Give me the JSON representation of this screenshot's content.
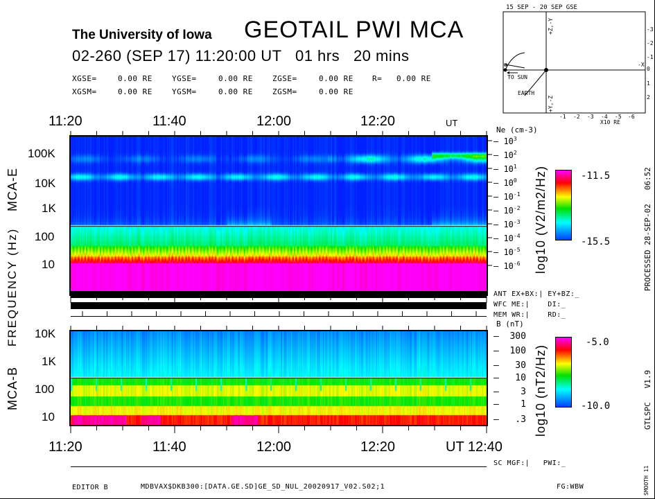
{
  "header": {
    "institution": "The University of Iowa",
    "title": "GEOTAIL PWI MCA",
    "date_line": "02-260 (SEP 17) 11:20:00 UT   01 hrs   20 mins",
    "gse": [
      {
        "label": "XGSE=",
        "value": "0.00 RE"
      },
      {
        "label": "YGSE=",
        "value": "0.00 RE"
      },
      {
        "label": "ZGSE=",
        "value": "0.00 RE"
      },
      {
        "label": "R=",
        "value": "0.00 RE"
      }
    ],
    "gsm": [
      {
        "label": "XGSM=",
        "value": "0.00 RE"
      },
      {
        "label": "YGSM=",
        "value": "0.00 RE"
      },
      {
        "label": "ZGSM=",
        "value": "0.00 RE"
      }
    ]
  },
  "orbit": {
    "title": "15 SEP - 20 SEP  GSE",
    "to_sun": "TO SUN",
    "earth": "EARTH",
    "x_unit": "X10 RE",
    "x_ticks": [
      "-1",
      "-2",
      "-3",
      "-4",
      "-5",
      "-6"
    ],
    "y_ticks": [
      "-3",
      "-2",
      "-1",
      "0",
      "1",
      "2"
    ],
    "minus_x": "-X",
    "top_axis": "+Z,-Y",
    "bottom_axis": "+Y,-Z"
  },
  "chart_data": [
    {
      "type": "heatmap",
      "name_label": "MCA-E",
      "x_ticks": [
        "11:20",
        "11:40",
        "12:00",
        "12:20"
      ],
      "x_unit": "UT",
      "y_ticks": [
        "100K",
        "10K",
        "1K",
        "100",
        "10"
      ],
      "ylabel": "FREQUENCY (Hz)",
      "y_scale": "log",
      "right_axis": {
        "label": "Ne (cm-3)",
        "ticks": [
          "10^3",
          "10^2",
          "10^1",
          "10^0",
          "10^-1",
          "10^-2",
          "10^-3",
          "10^-4",
          "10^-5",
          "10^-6"
        ]
      },
      "colorbar": {
        "label": "log10 (V2/m2/Hz)",
        "max": "-11.5",
        "min": "-15.5"
      }
    },
    {
      "type": "heatmap",
      "name_label": "MCA-B",
      "x_ticks": [
        "11:20",
        "11:40",
        "12:00",
        "12:20"
      ],
      "x_end": "UT 12:40",
      "y_ticks": [
        "10K",
        "1K",
        "100",
        "10"
      ],
      "y_scale": "log",
      "right_axis": {
        "label": "B (nT)",
        "ticks": [
          "300",
          "100",
          "30",
          "10",
          "3",
          "1",
          ".3"
        ]
      },
      "colorbar": {
        "label": "log10 (nT2/Hz)",
        "max": "-5.0",
        "min": "-10.0"
      }
    }
  ],
  "status": {
    "ant": "ANT EX+BX:| EY+BZ:_",
    "wfc": "WFC ME:|    DI:_",
    "mem": "MEM WR:|    RD:_",
    "sc": "SC MGF:|   PWI:_"
  },
  "footer": {
    "editor": "EDITOR B",
    "file": "MDBVAX$DKB300:[DATA.GE.SD]GE_SD_NUL_20020917_V02.S02;1",
    "fg": "FG:WBW"
  },
  "side": {
    "processed": "PROCESSED 28-SEP-02   06:52",
    "version": "GTLSPC   V1.9",
    "smooth": "SMOOTH 11"
  },
  "colors": {
    "colormap": [
      "#0000ff",
      "#00ffff",
      "#00ff00",
      "#ffff00",
      "#ff0000",
      "#ff00ff"
    ]
  }
}
